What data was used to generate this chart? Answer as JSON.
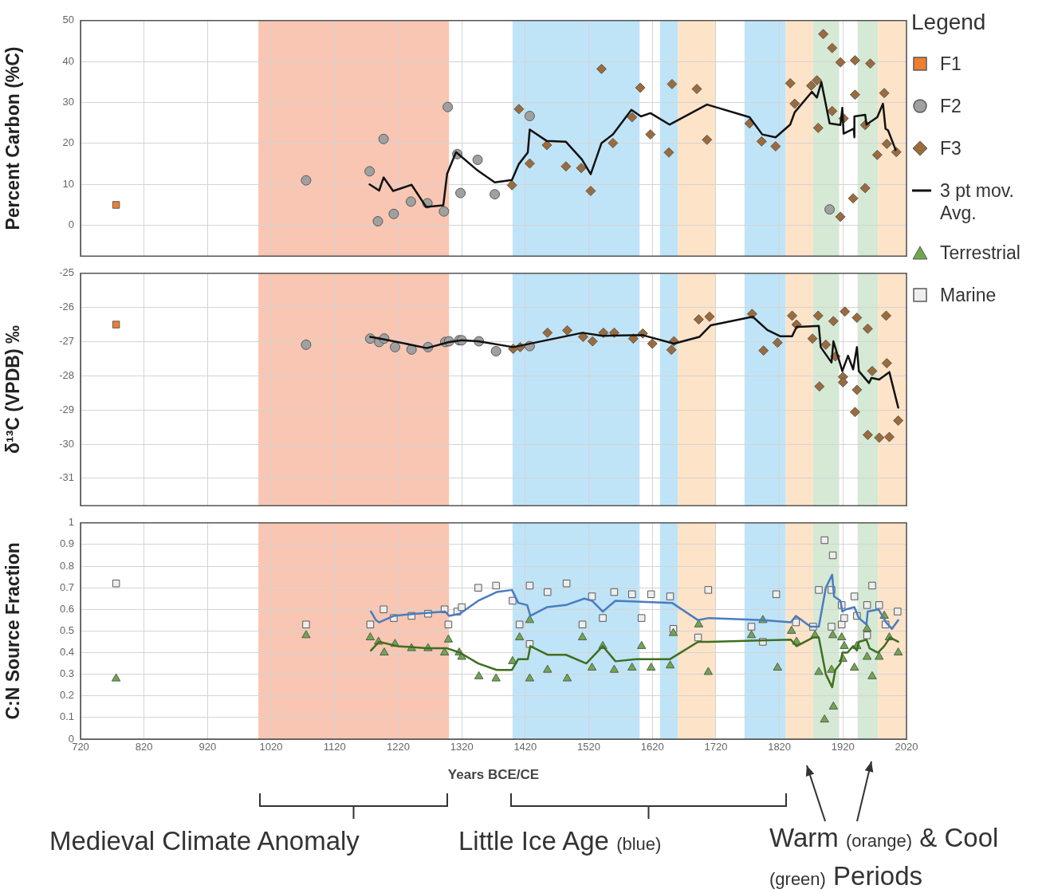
{
  "chart_data": [
    {
      "type": "scatter",
      "ylabel": "Percent Carbon (%C)",
      "xlim": [
        720,
        2020
      ],
      "xticks": [
        720,
        820,
        920,
        1020,
        1120,
        1220,
        1320,
        1420,
        1520,
        1620,
        1720,
        1820,
        1920,
        2020
      ],
      "ylim": [
        -7.5,
        50
      ],
      "yticks": [
        0,
        10,
        20,
        30,
        40,
        50
      ],
      "tick_labels": "y",
      "grid": true,
      "legend": "right",
      "legend_title": "Legend",
      "bands": [
        {
          "axis": "x",
          "from": 1000,
          "to": 1300,
          "color": "#f8c6b2"
        },
        {
          "axis": "x",
          "from": 1400,
          "to": 1600,
          "color": "#bfe4f7"
        },
        {
          "axis": "x",
          "from": 1632,
          "to": 1660,
          "color": "#bfe4f7"
        },
        {
          "axis": "x",
          "from": 1660,
          "to": 1720,
          "color": "#fde3c8"
        },
        {
          "axis": "x",
          "from": 1765,
          "to": 1830,
          "color": "#bfe4f7"
        },
        {
          "axis": "x",
          "from": 1830,
          "to": 1873,
          "color": "#fde3c8"
        },
        {
          "axis": "x",
          "from": 1873,
          "to": 1914,
          "color": "#d5e9d4"
        },
        {
          "axis": "x",
          "from": 1943,
          "to": 1975,
          "color": "#d5e9d4"
        },
        {
          "axis": "x",
          "from": 1975,
          "to": 2020,
          "color": "#fde3c8"
        }
      ],
      "series": [
        {
          "name": "F1",
          "type": "scatter",
          "marker": "square",
          "color": "#ef7f2d",
          "x": [
            776
          ],
          "values": [
            5
          ]
        },
        {
          "name": "F2",
          "type": "scatter",
          "marker": "circle",
          "color": "#a0a0a0",
          "x": [
            1075,
            1175,
            1188,
            1197,
            1213,
            1240,
            1266,
            1292,
            1298,
            1313,
            1318,
            1345,
            1372,
            1427,
            1899
          ],
          "values": [
            11,
            13.2,
            1.0,
            21.1,
            2.8,
            5.8,
            5.4,
            3.4,
            28.9,
            17.4,
            7.9,
            16.0,
            7.6,
            26.7,
            3.9
          ]
        },
        {
          "name": "F3",
          "type": "scatter",
          "marker": "diamond",
          "color": "#9c6b3c",
          "x": [
            1399,
            1410,
            1427,
            1454,
            1484,
            1508,
            1523,
            1540,
            1558,
            1588,
            1601,
            1617,
            1646,
            1651,
            1690,
            1706,
            1773,
            1792,
            1814,
            1837,
            1844,
            1870,
            1879,
            1881,
            1889,
            1903,
            1903,
            1916,
            1916,
            1921,
            1936,
            1939,
            1939,
            1955,
            1955,
            1963,
            1974,
            1985,
            1989,
            2004
          ],
          "values": [
            9.8,
            28.4,
            15.1,
            19.6,
            14.4,
            14.0,
            8.4,
            38.2,
            20.1,
            26.4,
            33.6,
            22.2,
            17.8,
            34.5,
            33.3,
            20.9,
            24.9,
            20.5,
            19.3,
            34.7,
            29.7,
            34.1,
            35.4,
            23.8,
            46.7,
            43.3,
            27.9,
            39.8,
            2.1,
            26.1,
            6.6,
            40.3,
            31.9,
            9.1,
            24.5,
            39.5,
            17.2,
            32.3,
            19.9,
            17.9
          ]
        },
        {
          "name": "3 pt mov. Avg.",
          "type": "line",
          "marker": "none",
          "color": "#111111",
          "x": [
            1175,
            1190,
            1197,
            1212,
            1241,
            1264,
            1291,
            1297,
            1311,
            1345,
            1372,
            1399,
            1410,
            1424,
            1427,
            1454,
            1484,
            1509,
            1523,
            1540,
            1558,
            1587,
            1602,
            1617,
            1647,
            1706,
            1773,
            1793,
            1814,
            1837,
            1844,
            1871,
            1879,
            1886,
            1899,
            1916,
            1919,
            1921,
            1937,
            1938,
            1938,
            1955,
            1957,
            1974,
            1983,
            1987,
            1991,
            2003
          ],
          "values": [
            10.0,
            8.5,
            11.7,
            8.4,
            9.9,
            4.5,
            4.9,
            12.6,
            17.9,
            13.4,
            10.5,
            11.1,
            15.0,
            17.8,
            23.4,
            20.6,
            20.4,
            16.1,
            12.5,
            20.1,
            22.2,
            28.2,
            26.6,
            27.4,
            24.6,
            29.5,
            26.4,
            22.2,
            21.5,
            24.6,
            27.6,
            32.6,
            31.2,
            35.0,
            24.9,
            24.5,
            28.7,
            22.4,
            23.6,
            21.5,
            26.6,
            27.0,
            24.6,
            26.4,
            29.7,
            23.6,
            23.2,
            18.4
          ]
        }
      ]
    },
    {
      "type": "scatter",
      "ylabel": "δ¹³C (VPDB) ‰",
      "xlim": [
        720,
        2020
      ],
      "xticks": [
        720,
        820,
        920,
        1020,
        1120,
        1220,
        1320,
        1420,
        1520,
        1620,
        1720,
        1820,
        1920,
        2020
      ],
      "ylim": [
        -31.8,
        -25
      ],
      "yticks": [
        -31,
        -30,
        -29,
        -28,
        -27,
        -26,
        -25
      ],
      "tick_labels": "y",
      "grid": true,
      "bands": [
        {
          "axis": "x",
          "from": 1000,
          "to": 1300,
          "color": "#f8c6b2"
        },
        {
          "axis": "x",
          "from": 1400,
          "to": 1600,
          "color": "#bfe4f7"
        },
        {
          "axis": "x",
          "from": 1632,
          "to": 1660,
          "color": "#bfe4f7"
        },
        {
          "axis": "x",
          "from": 1660,
          "to": 1720,
          "color": "#fde3c8"
        },
        {
          "axis": "x",
          "from": 1765,
          "to": 1830,
          "color": "#bfe4f7"
        },
        {
          "axis": "x",
          "from": 1830,
          "to": 1873,
          "color": "#fde3c8"
        },
        {
          "axis": "x",
          "from": 1873,
          "to": 1914,
          "color": "#d5e9d4"
        },
        {
          "axis": "x",
          "from": 1943,
          "to": 1975,
          "color": "#d5e9d4"
        },
        {
          "axis": "x",
          "from": 1975,
          "to": 2020,
          "color": "#fde3c8"
        }
      ],
      "series": [
        {
          "type": "scatter",
          "marker": "square",
          "color": "#ef7f2d",
          "x": [
            776
          ],
          "values": [
            -26.5
          ]
        },
        {
          "type": "scatter",
          "marker": "circle",
          "color": "#a0a0a0",
          "x": [
            1075,
            1176,
            1190,
            1198,
            1215,
            1241,
            1267,
            1294,
            1300,
            1316,
            1320,
            1347,
            1374,
            1427
          ],
          "values": [
            -27.09,
            -26.91,
            -27.01,
            -26.91,
            -27.16,
            -27.23,
            -27.16,
            -27.01,
            -26.99,
            -26.96,
            -26.96,
            -26.99,
            -27.28,
            -27.13
          ]
        },
        {
          "type": "scatter",
          "marker": "diamond",
          "color": "#9c6b3c",
          "x": [
            1401,
            1412,
            1455,
            1486,
            1511,
            1526,
            1543,
            1560,
            1590,
            1605,
            1620,
            1650,
            1654,
            1693,
            1710,
            1777,
            1795,
            1817,
            1840,
            1847,
            1872,
            1881,
            1883,
            1893,
            1905,
            1908,
            1920,
            1920,
            1923,
            1939,
            1942,
            1942,
            1959,
            1959,
            1966,
            1977,
            1988,
            1989,
            1993,
            2007
          ],
          "values": [
            -27.21,
            -27.16,
            -26.74,
            -26.67,
            -26.86,
            -26.99,
            -26.74,
            -26.74,
            -26.91,
            -26.76,
            -27.06,
            -27.24,
            -26.99,
            -26.35,
            -26.27,
            -26.19,
            -27.26,
            -27.03,
            -26.24,
            -26.5,
            -26.91,
            -26.24,
            -28.31,
            -27.09,
            -26.4,
            -27.43,
            -28.03,
            -28.19,
            -26.12,
            -29.06,
            -26.3,
            -28.41,
            -26.62,
            -29.73,
            -27.86,
            -29.81,
            -26.24,
            -27.63,
            -29.79,
            -29.31
          ]
        },
        {
          "type": "line",
          "marker": "none",
          "color": "#111111",
          "x": [
            1176,
            1185,
            1219,
            1265,
            1300,
            1320,
            1346,
            1401,
            1510,
            1542,
            1605,
            1654,
            1694,
            1712,
            1778,
            1801,
            1821,
            1840,
            1847,
            1882,
            1885,
            1902,
            1905,
            1919,
            1928,
            1936,
            1942,
            1945,
            1961,
            1965,
            1977,
            1993,
            2007
          ],
          "values": [
            -26.86,
            -26.89,
            -27.01,
            -27.19,
            -27.01,
            -26.96,
            -26.99,
            -27.16,
            -26.74,
            -26.83,
            -26.81,
            -27.06,
            -26.86,
            -26.52,
            -26.27,
            -26.66,
            -26.84,
            -26.84,
            -26.57,
            -26.54,
            -27.16,
            -27.61,
            -26.99,
            -27.86,
            -27.41,
            -27.81,
            -27.16,
            -27.86,
            -28.21,
            -28.06,
            -28.11,
            -27.89,
            -28.93
          ]
        }
      ]
    },
    {
      "type": "scatter",
      "ylabel": "C:N Source Fraction",
      "xlabel": "Years BCE/CE",
      "xlim": [
        720,
        2020
      ],
      "xticks": [
        720,
        820,
        920,
        1020,
        1120,
        1220,
        1320,
        1420,
        1520,
        1620,
        1720,
        1820,
        1920,
        2020
      ],
      "ylim": [
        0,
        1
      ],
      "yticks": [
        0,
        0.1,
        0.2,
        0.3,
        0.4,
        0.5,
        0.6,
        0.7,
        0.8,
        0.9,
        1
      ],
      "grid": true,
      "legend": "right",
      "annotations": [
        "Medieval Climate Anomaly",
        "Little Ice Age (blue)",
        "Warm (orange) & Cool (green) Periods"
      ],
      "bands": [
        {
          "axis": "x",
          "from": 1000,
          "to": 1300,
          "color": "#f8c6b2"
        },
        {
          "axis": "x",
          "from": 1400,
          "to": 1600,
          "color": "#bfe4f7"
        },
        {
          "axis": "x",
          "from": 1632,
          "to": 1660,
          "color": "#bfe4f7"
        },
        {
          "axis": "x",
          "from": 1660,
          "to": 1720,
          "color": "#fde3c8"
        },
        {
          "axis": "x",
          "from": 1765,
          "to": 1830,
          "color": "#bfe4f7"
        },
        {
          "axis": "x",
          "from": 1830,
          "to": 1873,
          "color": "#fde3c8"
        },
        {
          "axis": "x",
          "from": 1873,
          "to": 1914,
          "color": "#d5e9d4"
        },
        {
          "axis": "x",
          "from": 1943,
          "to": 1975,
          "color": "#d5e9d4"
        },
        {
          "axis": "x",
          "from": 1975,
          "to": 2020,
          "color": "#fde3c8"
        }
      ],
      "series": [
        {
          "name": "Terrestrial",
          "type": "scatter",
          "marker": "triangle",
          "color": "#6fa84a",
          "x": [
            776,
            1075,
            1176,
            1189,
            1198,
            1215,
            1241,
            1267,
            1293,
            1299,
            1316,
            1320,
            1347,
            1374,
            1400,
            1411,
            1427,
            1427,
            1455,
            1486,
            1510,
            1525,
            1542,
            1560,
            1588,
            1603,
            1618,
            1648,
            1653,
            1693,
            1708,
            1776,
            1794,
            1817,
            1839,
            1847,
            1876,
            1882,
            1891,
            1902,
            1904,
            1905,
            1918,
            1920,
            1922,
            1938,
            1942,
            1958,
            1958,
            1966,
            1977,
            1985,
            1993,
            2007
          ],
          "values": [
            0.28,
            0.48,
            0.47,
            0.45,
            0.4,
            0.44,
            0.42,
            0.42,
            0.4,
            0.46,
            0.4,
            0.38,
            0.29,
            0.28,
            0.36,
            0.47,
            0.55,
            0.28,
            0.32,
            0.28,
            0.47,
            0.33,
            0.43,
            0.32,
            0.33,
            0.43,
            0.33,
            0.34,
            0.49,
            0.53,
            0.31,
            0.48,
            0.55,
            0.33,
            0.5,
            0.45,
            0.48,
            0.31,
            0.09,
            0.32,
            0.48,
            0.15,
            0.47,
            0.37,
            0.43,
            0.33,
            0.43,
            0.51,
            0.38,
            0.29,
            0.38,
            0.57,
            0.47,
            0.4
          ]
        },
        {
          "name": "Marine",
          "type": "scatter",
          "marker": "square",
          "color": "#eeeeee",
          "x": [
            776,
            1075,
            1176,
            1197,
            1213,
            1241,
            1267,
            1293,
            1299,
            1313,
            1320,
            1346,
            1374,
            1400,
            1411,
            1427,
            1427,
            1455,
            1485,
            1510,
            1525,
            1542,
            1560,
            1588,
            1603,
            1618,
            1648,
            1653,
            1692,
            1708,
            1776,
            1794,
            1815,
            1846,
            1873,
            1882,
            1891,
            1902,
            1902,
            1904,
            1918,
            1918,
            1922,
            1938,
            1942,
            1958,
            1958,
            1966,
            1977,
            1987,
            2006
          ],
          "values": [
            0.72,
            0.53,
            0.53,
            0.6,
            0.56,
            0.57,
            0.58,
            0.6,
            0.53,
            0.59,
            0.61,
            0.7,
            0.71,
            0.64,
            0.53,
            0.71,
            0.44,
            0.68,
            0.72,
            0.53,
            0.66,
            0.56,
            0.68,
            0.67,
            0.56,
            0.67,
            0.66,
            0.51,
            0.47,
            0.69,
            0.52,
            0.45,
            0.67,
            0.54,
            0.52,
            0.69,
            0.92,
            0.69,
            0.52,
            0.85,
            0.62,
            0.53,
            0.56,
            0.66,
            0.57,
            0.62,
            0.48,
            0.71,
            0.62,
            0.53,
            0.59
          ]
        },
        {
          "type": "line",
          "marker": "none",
          "color": "#4a7cc0",
          "x": [
            1177,
            1185,
            1190,
            1213,
            1248,
            1294,
            1300,
            1317,
            1346,
            1375,
            1399,
            1409,
            1423,
            1428,
            1454,
            1484,
            1513,
            1525,
            1542,
            1562,
            1651,
            1692,
            1709,
            1795,
            1838,
            1846,
            1869,
            1882,
            1893,
            1903,
            1906,
            1916,
            1919,
            1925,
            1938,
            1945,
            1957,
            1959,
            1976,
            1988,
            1997,
            2007
          ],
          "values": [
            0.59,
            0.55,
            0.54,
            0.57,
            0.58,
            0.59,
            0.57,
            0.58,
            0.64,
            0.68,
            0.69,
            0.63,
            0.62,
            0.57,
            0.61,
            0.62,
            0.65,
            0.64,
            0.59,
            0.64,
            0.63,
            0.55,
            0.56,
            0.55,
            0.54,
            0.57,
            0.52,
            0.52,
            0.7,
            0.76,
            0.66,
            0.64,
            0.59,
            0.6,
            0.61,
            0.56,
            0.53,
            0.59,
            0.6,
            0.54,
            0.51,
            0.55
          ]
        },
        {
          "type": "line",
          "marker": "none",
          "color": "#3f6e21",
          "x": [
            1177,
            1190,
            1219,
            1265,
            1297,
            1317,
            1346,
            1375,
            1399,
            1409,
            1424,
            1428,
            1455,
            1484,
            1516,
            1542,
            1562,
            1594,
            1648,
            1692,
            1709,
            1838,
            1847,
            1873,
            1882,
            1893,
            1903,
            1908,
            1916,
            1919,
            1927,
            1936,
            1942,
            1945,
            1957,
            1962,
            1975,
            1985,
            1994,
            2007
          ],
          "values": [
            0.41,
            0.45,
            0.43,
            0.42,
            0.42,
            0.4,
            0.35,
            0.32,
            0.32,
            0.37,
            0.37,
            0.43,
            0.39,
            0.39,
            0.35,
            0.43,
            0.36,
            0.37,
            0.37,
            0.45,
            0.45,
            0.46,
            0.43,
            0.47,
            0.47,
            0.3,
            0.24,
            0.32,
            0.35,
            0.4,
            0.4,
            0.43,
            0.41,
            0.45,
            0.46,
            0.42,
            0.4,
            0.43,
            0.47,
            0.45
          ]
        }
      ]
    }
  ]
}
